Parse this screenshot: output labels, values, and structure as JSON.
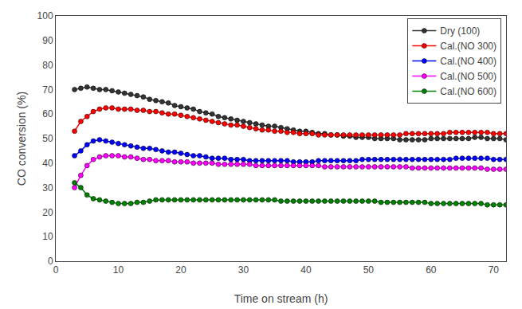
{
  "chart_data": {
    "type": "line",
    "xlabel": "Time on stream (h)",
    "ylabel": "CO conversion (%)",
    "xlim": [
      0,
      72
    ],
    "ylim": [
      0,
      100
    ],
    "xticks": [
      0,
      10,
      20,
      30,
      40,
      50,
      60,
      70
    ],
    "yticks": [
      0,
      10,
      20,
      30,
      40,
      50,
      60,
      70,
      80,
      90,
      100
    ],
    "grid": false,
    "legend": "upper right",
    "marker": "circle",
    "line_style": "solid",
    "x": [
      3,
      4,
      5,
      6,
      7,
      8,
      9,
      10,
      11,
      12,
      13,
      14,
      15,
      16,
      17,
      18,
      19,
      20,
      21,
      22,
      23,
      24,
      25,
      26,
      27,
      28,
      29,
      30,
      31,
      32,
      33,
      34,
      35,
      36,
      37,
      38,
      39,
      40,
      41,
      42,
      43,
      44,
      45,
      46,
      47,
      48,
      49,
      50,
      51,
      52,
      53,
      54,
      55,
      56,
      57,
      58,
      59,
      60,
      61,
      62,
      63,
      64,
      65,
      66,
      67,
      68,
      69,
      70,
      71,
      72
    ],
    "series": [
      {
        "name": "Dry (100)",
        "color": "#333333",
        "values": [
          70,
          70.5,
          71,
          70.5,
          70,
          70,
          69.5,
          69,
          68.5,
          68,
          67.5,
          67,
          66,
          65.5,
          65,
          64.5,
          63.5,
          63,
          62.5,
          62,
          61,
          60.5,
          60,
          59,
          58.5,
          58,
          57.5,
          57,
          56.5,
          56,
          55.5,
          55,
          55,
          54.5,
          54,
          53.5,
          53,
          53,
          52.5,
          52,
          52,
          51.5,
          51.5,
          51,
          51,
          50.5,
          50.5,
          50.5,
          50,
          50,
          50,
          50,
          49.5,
          49.5,
          49.5,
          49.5,
          49.5,
          50,
          50,
          50,
          50,
          50,
          50,
          50,
          50.5,
          50.5,
          50,
          50,
          50,
          49.5
        ]
      },
      {
        "name": "Cal.(NO 300)",
        "color": "#ff0000",
        "values": [
          53,
          57,
          59,
          61,
          62,
          62.5,
          62.5,
          62,
          62,
          62,
          61.5,
          61.5,
          61,
          61,
          60.5,
          60,
          60,
          59.5,
          59,
          58.5,
          58,
          57.5,
          57,
          56.5,
          56,
          55.5,
          55.5,
          55,
          54.5,
          54,
          53.5,
          53.5,
          53,
          53,
          52.5,
          52.5,
          52,
          52,
          52,
          51.5,
          51.5,
          51.5,
          51.5,
          51.5,
          51.5,
          51.5,
          51.5,
          51.5,
          51.5,
          51.5,
          51.5,
          51.5,
          51.5,
          52,
          52,
          52,
          52,
          52,
          52,
          52,
          52.5,
          52.5,
          52.5,
          52.5,
          52.5,
          52.5,
          52.5,
          52,
          52,
          52
        ]
      },
      {
        "name": "Cal.(NO 400)",
        "color": "#0000ff",
        "values": [
          43,
          45,
          47.5,
          49,
          49.5,
          49,
          48.5,
          48,
          47.5,
          47,
          46.5,
          46,
          46,
          45.5,
          45,
          44.5,
          44.5,
          44,
          43.5,
          43,
          43,
          42.5,
          42,
          42,
          42,
          41.5,
          41.5,
          41.5,
          41,
          41,
          41,
          41,
          41,
          41,
          41,
          40.5,
          40.5,
          40.5,
          40.5,
          41,
          41,
          41,
          41,
          41,
          41,
          41,
          41.5,
          41.5,
          41.5,
          41.5,
          41.5,
          41.5,
          41.5,
          41.5,
          41.5,
          41.5,
          41.5,
          41.5,
          41.5,
          41.5,
          41.5,
          42,
          42,
          42,
          42,
          42,
          42,
          41.5,
          41.5,
          41.5
        ]
      },
      {
        "name": "Cal.(NO 500)",
        "color": "#ff00ff",
        "values": [
          30,
          35,
          39,
          41.5,
          42.5,
          43,
          43,
          43,
          42.5,
          42.5,
          42,
          41.5,
          41.5,
          41,
          41,
          41,
          40.5,
          40.5,
          40.5,
          40,
          40,
          40,
          40,
          39.5,
          39.5,
          39.5,
          39.5,
          39.5,
          39.5,
          39,
          39,
          39,
          39,
          39,
          39,
          39,
          39,
          39,
          39,
          39,
          38.5,
          38.5,
          38.5,
          38.5,
          38.5,
          38.5,
          38.5,
          38.5,
          38.5,
          38.5,
          38.5,
          38.5,
          38.5,
          38.5,
          38,
          38,
          38,
          38,
          38,
          38,
          38,
          38,
          38,
          38,
          38,
          38,
          37.5,
          37.5,
          37.5,
          37.5
        ]
      },
      {
        "name": "Cal.(NO 600)",
        "color": "#008000",
        "values": [
          32,
          30,
          27,
          25.5,
          25,
          24.5,
          24,
          23.5,
          23.5,
          23.5,
          24,
          24,
          24.5,
          25,
          25,
          25,
          25,
          25,
          25,
          25,
          25,
          25,
          25,
          25,
          25,
          25,
          25,
          25,
          25,
          25,
          25,
          25,
          25,
          24.5,
          24.5,
          24.5,
          24.5,
          24.5,
          24.5,
          24.5,
          24.5,
          24.5,
          24.5,
          24.5,
          24.5,
          24.5,
          24.5,
          24.5,
          24.5,
          24,
          24,
          24,
          24,
          24,
          24,
          24,
          24,
          23.5,
          23.5,
          23.5,
          23.5,
          23.5,
          23.5,
          23.5,
          23.5,
          23.5,
          23,
          23,
          23,
          23
        ]
      }
    ]
  }
}
